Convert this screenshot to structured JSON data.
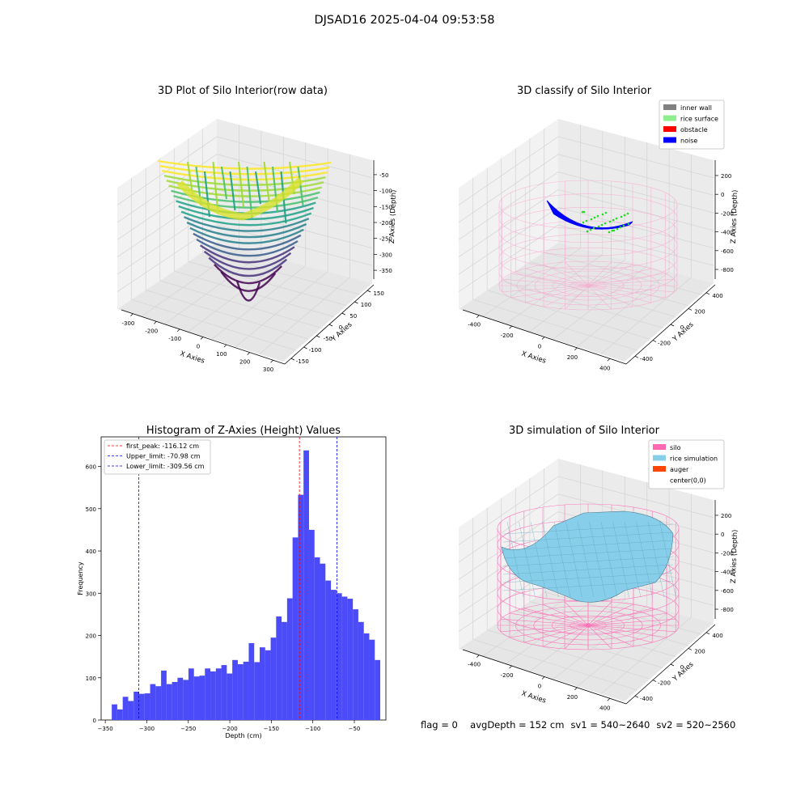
{
  "figure_title": "DJSAD16 2025-04-04 09:53:58",
  "status": {
    "flag": "flag = 0",
    "avg_depth": "avgDepth = 152 cm",
    "sv1": "sv1 = 540~2640",
    "sv2": "sv2 = 520~2560"
  },
  "chart_data": [
    {
      "type": "scatter",
      "title": "3D Plot of Silo Interior(row data)",
      "xlabel": "X Axies",
      "ylabel": "Y Axies",
      "zlabel": "Z Axies (Depth)",
      "xticks": [
        -300,
        -200,
        -100,
        0,
        100,
        200,
        300
      ],
      "yticks": [
        -150,
        -100,
        -50,
        0,
        50,
        100,
        150
      ],
      "zticks": [
        -50,
        -100,
        -150,
        -200,
        -250,
        -300,
        -350
      ],
      "colormap": "viridis",
      "grid": true
    },
    {
      "type": "scatter",
      "title": "3D classify of Silo Interior",
      "xlabel": "X Axies",
      "ylabel": "Y Axies",
      "zlabel": "Z Axies (Depth)",
      "xticks": [
        -400,
        -200,
        0,
        200,
        400
      ],
      "yticks": [
        -400,
        -200,
        0,
        200,
        400
      ],
      "zticks": [
        200,
        0,
        -200,
        -400,
        -600,
        -800
      ],
      "legend_position": "top-right",
      "legend": [
        {
          "label": "inner wall",
          "color": "#808080"
        },
        {
          "label": "rice surface",
          "color": "#90ee90"
        },
        {
          "label": "obstacle",
          "color": "#ff0000"
        },
        {
          "label": "noise",
          "color": "#0000ff"
        }
      ],
      "grid": true
    },
    {
      "type": "bar",
      "title": "Histogram of Z-Axies (Height) Values",
      "xlabel": "Depth (cm)",
      "ylabel": "Frequency",
      "xlim": [
        -355,
        -12
      ],
      "ylim": [
        0,
        670
      ],
      "xticks": [
        -350,
        -300,
        -250,
        -200,
        -150,
        -100,
        -50
      ],
      "yticks": [
        0,
        100,
        200,
        300,
        400,
        500,
        600
      ],
      "bar_color": "#4b4bfa",
      "bin_start": -342.2,
      "bin_width": 6.6,
      "values": [
        37,
        25,
        55,
        45,
        67,
        62,
        63,
        85,
        80,
        117,
        85,
        90,
        100,
        95,
        122,
        103,
        105,
        122,
        115,
        122,
        130,
        110,
        142,
        132,
        138,
        182,
        137,
        172,
        165,
        195,
        245,
        232,
        288,
        432,
        533,
        638,
        450,
        385,
        370,
        330,
        308,
        300,
        292,
        287,
        262,
        232,
        205,
        190,
        142
      ],
      "vlines": [
        {
          "label": "first_peak: -116.12 cm",
          "x": -116.12,
          "color": "#ff0000"
        },
        {
          "label": "Upper_limit: -70.98 cm",
          "x": -70.98,
          "color": "#0000ff"
        },
        {
          "label": "Lower_limit: -309.56 cm",
          "x": -309.56,
          "color": "#0000ff"
        }
      ],
      "legend_position": "top-left"
    },
    {
      "type": "scatter",
      "title": "3D simulation of Silo Interior",
      "xlabel": "X Axies",
      "ylabel": "Y Axies",
      "zlabel": "Z Axies (Depth)",
      "xticks": [
        -400,
        -200,
        0,
        200,
        400
      ],
      "yticks": [
        -400,
        -200,
        0,
        200,
        400
      ],
      "zticks": [
        200,
        0,
        -200,
        -400,
        -600,
        -800
      ],
      "legend_position": "top-right",
      "legend": [
        {
          "label": "silo",
          "color": "#ff69b4"
        },
        {
          "label": "rice simulation",
          "color": "#87ceeb"
        },
        {
          "label": "auger",
          "color": "#ff4500"
        },
        {
          "label": "center(0,0)",
          "color": ""
        }
      ],
      "grid": true
    }
  ]
}
